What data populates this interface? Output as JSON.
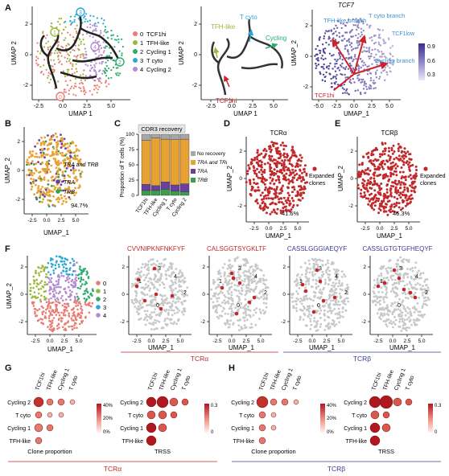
{
  "panels": {
    "A": "A",
    "B": "B",
    "C": "C",
    "D": "D",
    "E": "E",
    "F": "F",
    "G": "G",
    "H": "H"
  },
  "panelA": {
    "umap1": "UMAP 1",
    "umap2": "UMAP 2",
    "legend": [
      {
        "idx": "0",
        "label": "TCF1hi",
        "color": "#e87b73"
      },
      {
        "idx": "1",
        "label": "TFH-like",
        "color": "#9ab83a"
      },
      {
        "idx": "2",
        "label": "Cycling 1",
        "color": "#2cad6f"
      },
      {
        "idx": "3",
        "label": "T cyto",
        "color": "#2aa7d5"
      },
      {
        "idx": "4",
        "label": "Cycling 2",
        "color": "#b38bd0"
      }
    ],
    "traj_labels": {
      "tfh": "TFH-like",
      "tcyto": "T cyto",
      "cycling": "Cycling",
      "tcf1": "TCF1hi"
    },
    "tcf7_title": "TCF7",
    "branch_labels": {
      "tfh": "TFH-like branch",
      "tcyto": "T cyto branch",
      "tcf1": "TCF1hi",
      "tcf1low": "TCF1low",
      "cycling": "Cycling branch"
    },
    "colorbar_ticks": [
      "0.9",
      "0.6",
      "0.3"
    ],
    "xticks": [
      "-2.5",
      "0.0",
      "2.5",
      "5.0"
    ],
    "yticks": [
      "2",
      "0",
      "-2"
    ],
    "xticks_c": [
      "-5.0",
      "-2.5",
      "0.0",
      "2.5",
      "5.0"
    ]
  },
  "panelB": {
    "umap1": "UMAP_1",
    "umap2": "UMAP_2",
    "legend": [
      {
        "label": "TRA and TRB",
        "color": "#e8a133"
      },
      {
        "label": "TRA",
        "color": "#6b3f9e"
      },
      {
        "label": "TRB",
        "color": "#3a9f4a"
      }
    ],
    "pct": "94.7%",
    "xticks": [
      "-2.5",
      "0.0",
      "2.5",
      "5.0"
    ],
    "yticks": [
      "2",
      "0",
      "-2"
    ]
  },
  "panelC": {
    "title": "CDR3 recovery",
    "ylabel": "Proportion of T cells (%)",
    "yticks": [
      "100",
      "75",
      "50",
      "25",
      "0"
    ],
    "legend": [
      {
        "label": "No recovery",
        "color": "#a7a7a7"
      },
      {
        "label": "TRA and TRB",
        "color": "#e8a133"
      },
      {
        "label": "TRA",
        "color": "#6b3f9e"
      },
      {
        "label": "TRB",
        "color": "#3a9f4a"
      }
    ],
    "categories": [
      "TCF1hi",
      "TFH-like",
      "Cycling 1",
      "T cyto",
      "Cycling 2"
    ]
  },
  "panelD": {
    "title": "TCRα",
    "legend": "Expanded clones",
    "pct": "41.6%",
    "umap1": "UMAP_1",
    "umap2": "UMAP_2",
    "xticks": [
      "-2.5",
      "0.0",
      "2.5",
      "5.0"
    ],
    "yticks": [
      "2",
      "0",
      "-2"
    ]
  },
  "panelE": {
    "title": "TCRβ",
    "legend": "Expanded clones",
    "pct": "46.3%",
    "umap1": "UMAP_1",
    "umap2": "UMAP_2",
    "xticks": [
      "-2.5",
      "0.0",
      "2.5",
      "5.0"
    ],
    "yticks": [
      "2",
      "0",
      "-2"
    ]
  },
  "panelF": {
    "umap1": "UMAP_1",
    "umap2": "UMAP_2",
    "legend": [
      {
        "idx": "0",
        "color": "#e87b73"
      },
      {
        "idx": "1",
        "color": "#9ab83a"
      },
      {
        "idx": "2",
        "color": "#2cad6f"
      },
      {
        "idx": "3",
        "color": "#2aa7d5"
      },
      {
        "idx": "4",
        "color": "#b38bd0"
      }
    ],
    "clonotypes": [
      {
        "seq": "CVVNIPKNFNKFYF",
        "color": "#c0282a"
      },
      {
        "seq": "CALSGGTSYGKLTF",
        "color": "#c0282a"
      },
      {
        "seq": "CASSLGGGIAEQYF",
        "color": "#3b3b8f"
      },
      {
        "seq": "CASSLGTGTGFHEQYF",
        "color": "#3b3b8f"
      }
    ],
    "tcra": "TCRα",
    "tcrb": "TCRβ",
    "xticks": [
      "-2.5",
      "0.0",
      "2.5",
      "5.0"
    ],
    "yticks": [
      "2",
      "0",
      "-2"
    ]
  },
  "panelG": {
    "cols": [
      "TCF1hi",
      "TFH-like",
      "Cycling 1",
      "T cyto"
    ],
    "rows": [
      "Cycling 2",
      "T cyto",
      "Cycling 1",
      "TFH-like"
    ],
    "legend_prop": [
      "40%",
      "20%",
      "0%"
    ],
    "legend_trss": [
      "0.3",
      "0"
    ],
    "sub1": "Clone proportion",
    "sub2": "TRSS",
    "footer": "TCRα"
  },
  "panelH": {
    "cols": [
      "TCF1hi",
      "TFH-like",
      "Cycling 1",
      "T cyto"
    ],
    "rows": [
      "Cycling 2",
      "T cyto",
      "Cycling 1",
      "TFH-like"
    ],
    "legend_prop": [
      "40%",
      "20%",
      "0%"
    ],
    "legend_trss": [
      "0.3",
      "0"
    ],
    "sub1": "Clone proportion",
    "sub2": "TRSS",
    "footer": "TCRβ"
  }
}
